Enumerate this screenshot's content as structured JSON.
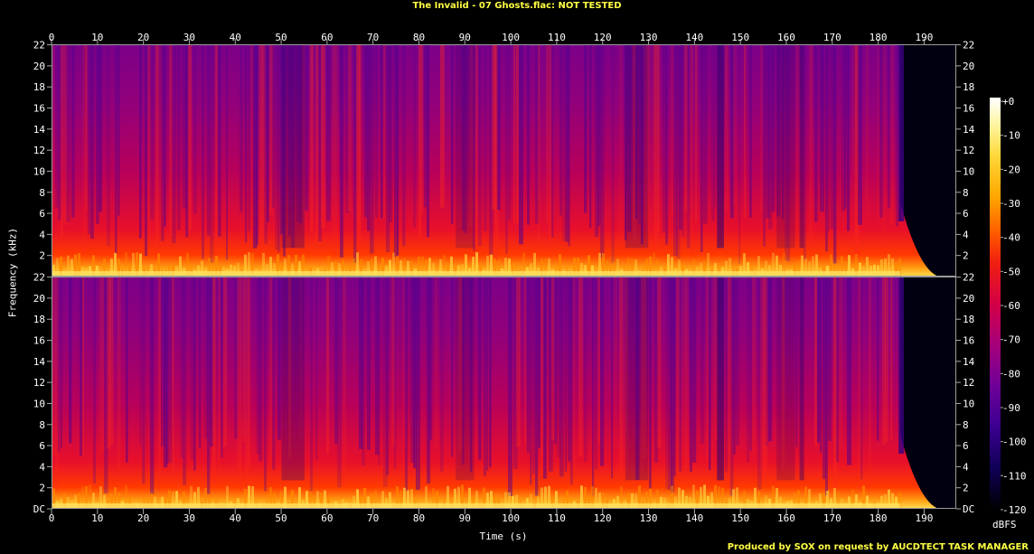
{
  "title": "The Invalid - 07 Ghosts.flac: NOT TESTED",
  "footer": "Produced by SOX on request by AUCDTECT TASK MANAGER",
  "chart_data": {
    "type": "heatmap",
    "title": "The Invalid - 07 Ghosts.flac: NOT TESTED",
    "xlabel": "Time (s)",
    "ylabel": "Frequency (kHz)",
    "x_ticks": [
      "0",
      "10",
      "20",
      "30",
      "40",
      "50",
      "60",
      "70",
      "80",
      "90",
      "100",
      "110",
      "120",
      "130",
      "140",
      "150",
      "160",
      "170",
      "180",
      "190"
    ],
    "y_ticks": [
      "DC",
      "2",
      "4",
      "6",
      "8",
      "10",
      "12",
      "14",
      "16",
      "18",
      "20",
      "22"
    ],
    "xlim": [
      0,
      197
    ],
    "ylim": [
      0,
      22.05
    ],
    "channels": [
      "left",
      "right"
    ],
    "audio_end_s": 185,
    "colorbar": {
      "label": "dBFS",
      "ticks": [
        "+0",
        "-10",
        "-20",
        "-30",
        "-40",
        "-50",
        "-60",
        "-70",
        "-80",
        "-90",
        "-100",
        "-110",
        "-120"
      ],
      "range": [
        -120,
        0
      ]
    }
  }
}
